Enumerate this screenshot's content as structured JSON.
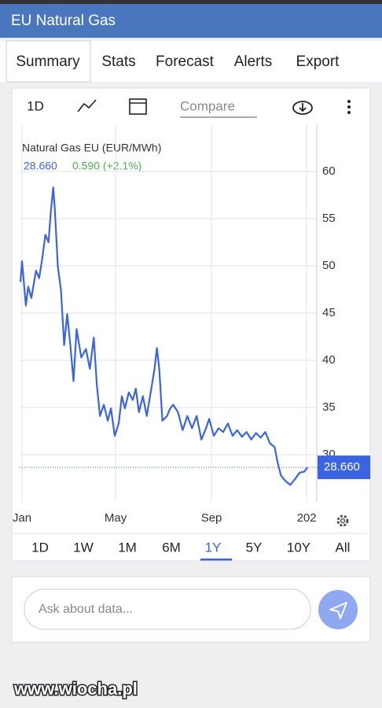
{
  "header": {
    "title": "EU Natural Gas"
  },
  "tabs": [
    "Summary",
    "Stats",
    "Forecast",
    "Alerts",
    "Export"
  ],
  "toolbar": {
    "interval": "1D",
    "compare_placeholder": "Compare"
  },
  "quote": {
    "last": "28.660",
    "change": "0.590 (+2.1%)"
  },
  "chart_data": {
    "type": "line",
    "title": "Natural Gas EU (EUR/MWh)",
    "color": "#3b64e0",
    "x": [
      -2,
      0,
      5,
      8,
      12,
      18,
      22,
      26,
      30,
      34,
      37,
      40,
      42,
      46,
      50,
      54,
      58,
      62,
      66,
      70,
      76,
      82,
      87,
      92,
      96,
      100,
      105,
      110,
      114,
      119,
      124,
      128,
      132,
      137,
      142,
      146,
      150,
      155,
      160,
      165,
      170,
      173,
      176,
      180,
      186,
      190,
      194,
      200,
      206,
      212,
      218,
      224,
      230,
      236,
      240,
      246,
      252,
      258,
      264,
      270,
      276,
      282,
      288,
      294,
      300,
      306,
      312,
      318,
      324,
      328,
      332,
      338,
      344,
      350,
      356,
      362,
      366
    ],
    "values": [
      48.3,
      50.5,
      45.8,
      47.8,
      46.6,
      49.5,
      48.7,
      50.8,
      53.3,
      52.5,
      55.8,
      58.3,
      56.2,
      49.9,
      47.4,
      41.6,
      44.9,
      41.6,
      37.8,
      43.3,
      40.3,
      41.2,
      39.1,
      42.4,
      37.4,
      34.1,
      35.3,
      33.6,
      34.9,
      32.0,
      33.3,
      36.2,
      34.9,
      36.6,
      35.8,
      37.0,
      34.5,
      36.2,
      34.1,
      36.6,
      39.1,
      41.3,
      39.1,
      33.6,
      34.1,
      34.9,
      35.3,
      34.5,
      32.6,
      34.1,
      32.8,
      34.1,
      31.6,
      32.8,
      33.8,
      32.0,
      32.8,
      32.4,
      33.3,
      32.0,
      32.6,
      31.9,
      32.4,
      31.6,
      32.3,
      31.8,
      32.4,
      31.2,
      30.8,
      29.1,
      27.8,
      27.2,
      26.8,
      27.4,
      28.1,
      28.2,
      28.66
    ],
    "xlim": [
      -3,
      378
    ],
    "xticks": [
      {
        "value": 0,
        "label": "Jan"
      },
      {
        "value": 120,
        "label": "May"
      },
      {
        "value": 243,
        "label": "Sep"
      },
      {
        "value": 365,
        "label": "202"
      }
    ],
    "ylim": [
      25,
      65
    ],
    "yticks": [
      30,
      35,
      40,
      45,
      50,
      55,
      60
    ],
    "grid": true
  },
  "ranges": [
    "1D",
    "1W",
    "1M",
    "6M",
    "1Y",
    "5Y",
    "10Y",
    "All"
  ],
  "ask": {
    "placeholder": "Ask about data..."
  },
  "watermark": "www.wiocha.pl"
}
